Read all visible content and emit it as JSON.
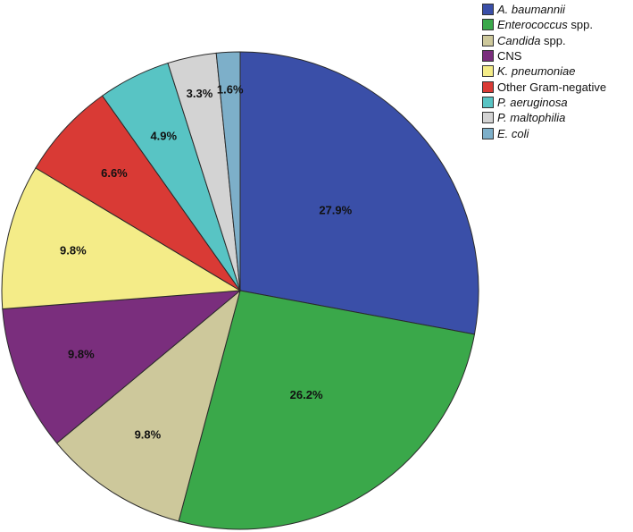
{
  "chart_data": {
    "type": "pie",
    "slices": [
      {
        "label": "A. baumannii",
        "value": 27.9,
        "label_text": "27.9%",
        "color": "#3a4fa8",
        "legend": {
          "italic": "A. baumannii",
          "plain": ""
        }
      },
      {
        "label": "Enterococcus spp.",
        "value": 26.2,
        "label_text": "26.2%",
        "color": "#3aa84a",
        "legend": {
          "italic": "Enterococcus",
          "plain": " spp."
        }
      },
      {
        "label": "Candida spp.",
        "value": 9.8,
        "label_text": "9.8%",
        "color": "#cdc89b",
        "legend": {
          "italic": "Candida",
          "plain": " spp."
        }
      },
      {
        "label": "CNS",
        "value": 9.8,
        "label_text": "9.8%",
        "color": "#7a2e7d",
        "legend": {
          "italic": "",
          "plain": "CNS"
        }
      },
      {
        "label": "K. pneumoniae",
        "value": 9.8,
        "label_text": "9.8%",
        "color": "#f4ec88",
        "legend": {
          "italic": "K. pneumoniae",
          "plain": ""
        }
      },
      {
        "label": "Other Gram-negative",
        "value": 6.6,
        "label_text": "6.6%",
        "color": "#d93a35",
        "legend": {
          "italic": "",
          "plain": "Other Gram-negative"
        }
      },
      {
        "label": "P. aeruginosa",
        "value": 4.9,
        "label_text": "4.9%",
        "color": "#58c4c4",
        "legend": {
          "italic": "P. aeruginosa",
          "plain": ""
        }
      },
      {
        "label": "P. maltophilia",
        "value": 3.3,
        "label_text": "3.3%",
        "color": "#d3d3d3",
        "legend": {
          "italic": "P. maltophilia",
          "plain": ""
        }
      },
      {
        "label": "E. coli",
        "value": 1.6,
        "label_text": "1.6%",
        "color": "#7dafc9",
        "legend": {
          "italic": "E. coli",
          "plain": ""
        }
      }
    ],
    "start": "12 o'clock",
    "direction": "clockwise",
    "legend_position": "top-right"
  }
}
